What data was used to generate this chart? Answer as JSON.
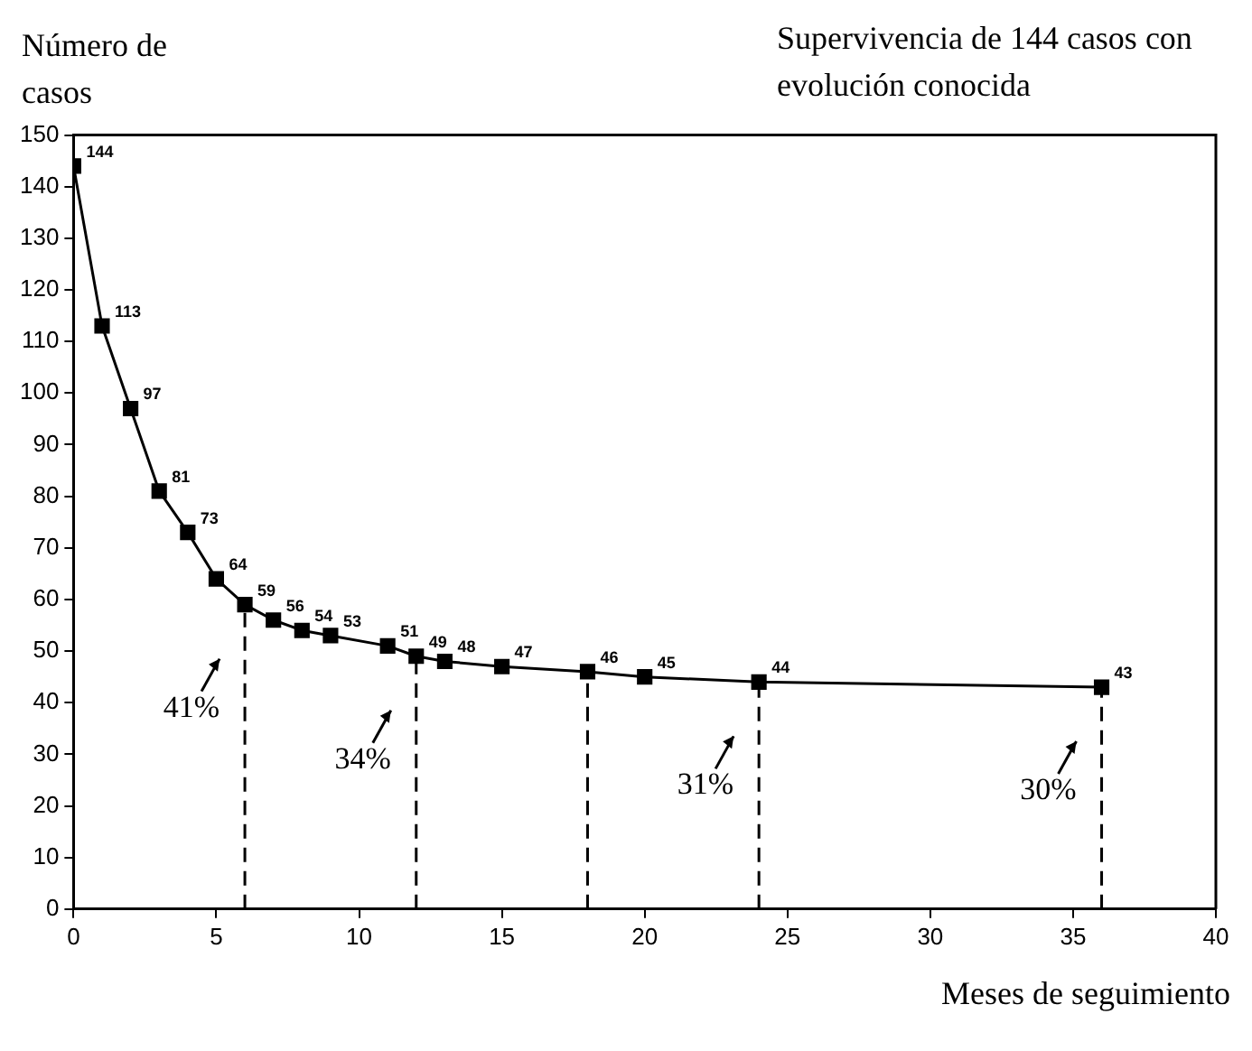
{
  "chart_data": {
    "type": "line",
    "title": "Supervivencia de 144 casos con evolución conocida",
    "xlabel": "Meses de seguimiento",
    "ylabel": "Número de casos",
    "x": [
      0,
      1,
      2,
      3,
      4,
      5,
      6,
      7,
      8,
      9,
      11,
      12,
      13,
      15,
      18,
      20,
      24,
      36
    ],
    "series": [
      {
        "color": "#000000",
        "values": [
          144,
          113,
          97,
          81,
          73,
          64,
          59,
          56,
          54,
          53,
          51,
          49,
          48,
          47,
          46,
          45,
          44,
          43
        ]
      }
    ],
    "xlim": [
      0,
      40
    ],
    "xticks": [
      0,
      5,
      10,
      15,
      20,
      25,
      30,
      35,
      40
    ],
    "ylim": [
      0,
      150
    ],
    "yticks": [
      0,
      10,
      20,
      30,
      40,
      50,
      60,
      70,
      80,
      90,
      100,
      110,
      120,
      130,
      140,
      150
    ],
    "data_labels": true,
    "marker": "square",
    "line_style": "solid",
    "grid": false,
    "legend": false,
    "ref_lines": [
      {
        "axis": "x",
        "value": 6,
        "line_style": "dashed"
      },
      {
        "axis": "x",
        "value": 12,
        "line_style": "dashed"
      },
      {
        "axis": "x",
        "value": 18,
        "line_style": "dashed"
      },
      {
        "axis": "x",
        "value": 24,
        "line_style": "dashed"
      },
      {
        "axis": "x",
        "value": 36,
        "line_style": "dashed"
      }
    ],
    "annotations": [
      {
        "text": "41%",
        "x": 6,
        "y": 59
      },
      {
        "text": "34%",
        "x": 12,
        "y": 49
      },
      {
        "text": "31%",
        "x": 24,
        "y": 44
      },
      {
        "text": "30%",
        "x": 36,
        "y": 43
      }
    ]
  }
}
